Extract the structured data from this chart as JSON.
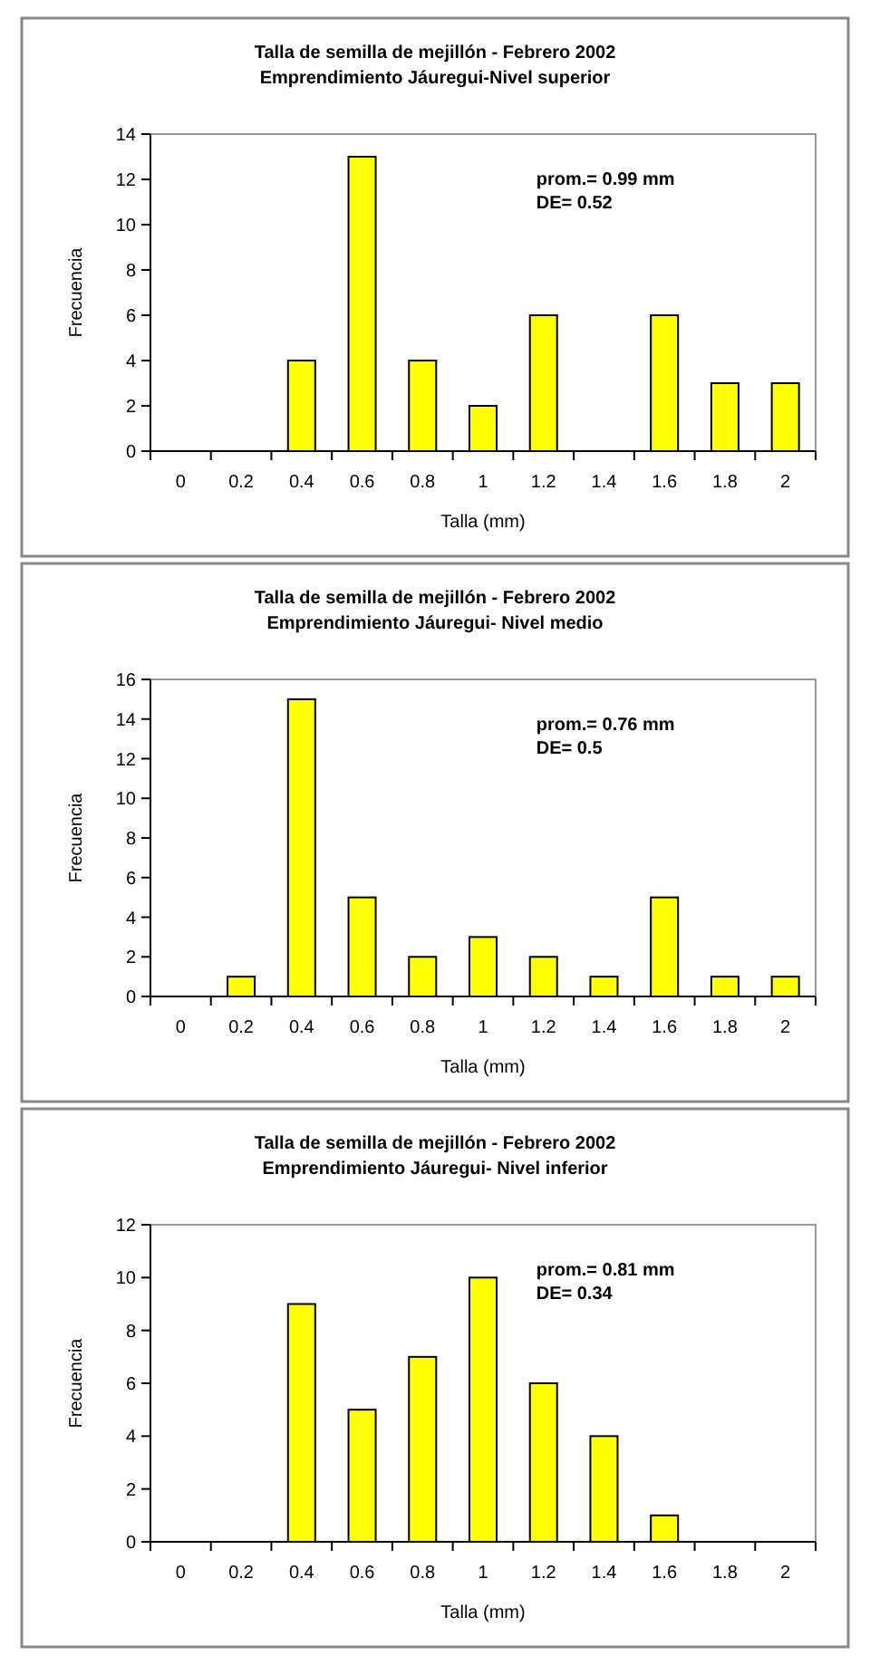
{
  "chart_data": [
    {
      "type": "bar",
      "title": "Talla de semilla de mejillón - Febrero 2002",
      "subtitle": "Emprendimiento Jáuregui-Nivel superior",
      "xlabel": "Talla (mm)",
      "ylabel": "Frecuencia",
      "categories": [
        "0",
        "0.2",
        "0.4",
        "0.6",
        "0.8",
        "1",
        "1.2",
        "1.4",
        "1.6",
        "1.8",
        "2"
      ],
      "values": [
        0,
        0,
        4,
        13,
        4,
        2,
        6,
        0,
        6,
        3,
        3
      ],
      "color": "#ffff00",
      "ylim": [
        0,
        14
      ],
      "yticks": [
        0,
        2,
        4,
        6,
        8,
        10,
        12,
        14
      ],
      "annotations": [
        "prom.= 0.99 mm",
        "DE= 0.52"
      ],
      "grid": false
    },
    {
      "type": "bar",
      "title": "Talla de semilla de mejillón - Febrero 2002",
      "subtitle": "Emprendimiento Jáuregui- Nivel medio",
      "xlabel": "Talla (mm)",
      "ylabel": "Frecuencia",
      "categories": [
        "0",
        "0.2",
        "0.4",
        "0.6",
        "0.8",
        "1",
        "1.2",
        "1.4",
        "1.6",
        "1.8",
        "2"
      ],
      "values": [
        0,
        1,
        15,
        5,
        2,
        3,
        2,
        1,
        5,
        1,
        1
      ],
      "color": "#ffff00",
      "ylim": [
        0,
        16
      ],
      "yticks": [
        0,
        2,
        4,
        6,
        8,
        10,
        12,
        14,
        16
      ],
      "annotations": [
        "prom.= 0.76 mm",
        "DE= 0.5"
      ],
      "grid": false
    },
    {
      "type": "bar",
      "title": "Talla de semilla de mejillón - Febrero 2002",
      "subtitle": "Emprendimiento Jáuregui- Nivel inferior",
      "xlabel": "Talla (mm)",
      "ylabel": "Frecuencia",
      "categories": [
        "0",
        "0.2",
        "0.4",
        "0.6",
        "0.8",
        "1",
        "1.2",
        "1.4",
        "1.6",
        "1.8",
        "2"
      ],
      "values": [
        0,
        0,
        9,
        5,
        7,
        10,
        6,
        4,
        1,
        0,
        0
      ],
      "color": "#ffff00",
      "ylim": [
        0,
        12
      ],
      "yticks": [
        0,
        2,
        4,
        6,
        8,
        10,
        12
      ],
      "annotations": [
        "prom.= 0.81 mm",
        "DE= 0.34"
      ],
      "grid": false
    }
  ]
}
